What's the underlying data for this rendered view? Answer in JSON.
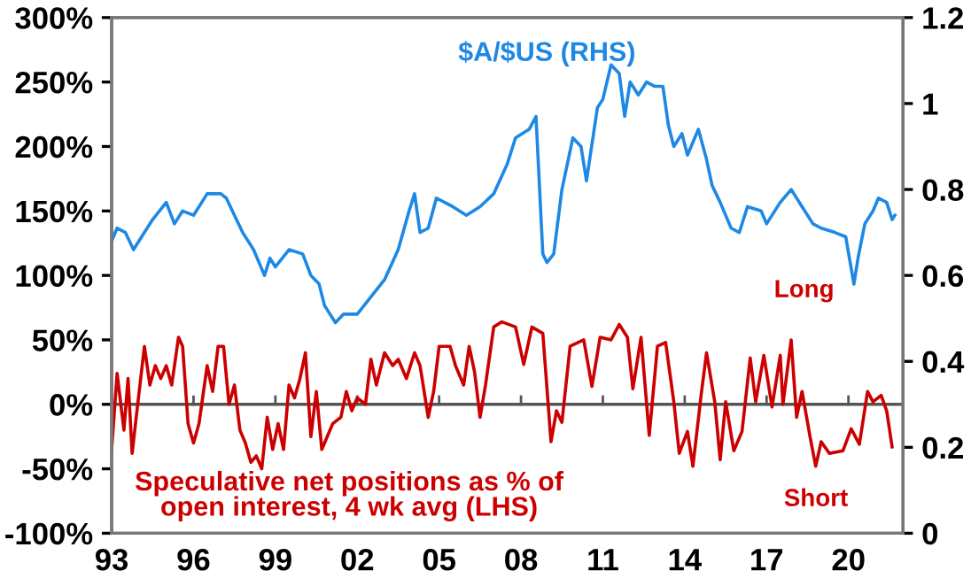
{
  "chart_data": {
    "type": "line",
    "annotations": [
      "Long",
      "Short"
    ],
    "series": [
      {
        "name": "$A/$US (RHS)",
        "color": "#1e88e5",
        "axis": "y2",
        "x": [
          1993.0,
          1993.2,
          1993.5,
          1993.8,
          1994.0,
          1994.5,
          1995.0,
          1995.3,
          1995.6,
          1996.0,
          1996.5,
          1997.0,
          1997.2,
          1997.5,
          1997.8,
          1998.2,
          1998.6,
          1998.8,
          1999.0,
          1999.5,
          2000.0,
          2000.3,
          2000.6,
          2000.8,
          2001.2,
          2001.5,
          2001.8,
          2002.0,
          2002.5,
          2003.0,
          2003.5,
          2003.9,
          2004.1,
          2004.3,
          2004.6,
          2004.9,
          2005.5,
          2006.0,
          2006.5,
          2007.0,
          2007.5,
          2007.8,
          2008.3,
          2008.55,
          2008.8,
          2008.95,
          2009.2,
          2009.5,
          2009.9,
          2010.2,
          2010.4,
          2010.8,
          2011.0,
          2011.3,
          2011.6,
          2011.8,
          2012.0,
          2012.3,
          2012.6,
          2012.9,
          2013.2,
          2013.4,
          2013.6,
          2013.9,
          2014.1,
          2014.5,
          2014.8,
          2015.0,
          2015.3,
          2015.7,
          2016.0,
          2016.3,
          2016.8,
          2017.0,
          2017.5,
          2017.9,
          2018.0,
          2018.3,
          2018.7,
          2019.0,
          2019.5,
          2019.9,
          2020.2,
          2020.35,
          2020.6,
          2020.9,
          2021.1,
          2021.4,
          2021.6,
          2021.7
        ],
        "values": [
          0.68,
          0.71,
          0.7,
          0.66,
          0.68,
          0.73,
          0.77,
          0.72,
          0.75,
          0.74,
          0.79,
          0.79,
          0.78,
          0.74,
          0.7,
          0.66,
          0.6,
          0.64,
          0.62,
          0.66,
          0.65,
          0.6,
          0.58,
          0.53,
          0.49,
          0.51,
          0.51,
          0.51,
          0.55,
          0.59,
          0.66,
          0.75,
          0.79,
          0.7,
          0.71,
          0.78,
          0.76,
          0.74,
          0.76,
          0.79,
          0.86,
          0.92,
          0.94,
          0.97,
          0.65,
          0.63,
          0.65,
          0.8,
          0.92,
          0.9,
          0.82,
          0.99,
          1.01,
          1.09,
          1.07,
          0.97,
          1.05,
          1.02,
          1.05,
          1.04,
          1.04,
          0.95,
          0.9,
          0.93,
          0.88,
          0.94,
          0.87,
          0.81,
          0.77,
          0.71,
          0.7,
          0.76,
          0.75,
          0.72,
          0.77,
          0.8,
          0.79,
          0.76,
          0.72,
          0.71,
          0.7,
          0.69,
          0.58,
          0.64,
          0.72,
          0.75,
          0.78,
          0.77,
          0.73,
          0.74
        ]
      },
      {
        "name": "Speculative net positions as % of\nopen interest, 4 wk avg (LHS)",
        "color": "#cc0000",
        "axis": "y",
        "x": [
          1993.0,
          1993.2,
          1993.45,
          1993.6,
          1993.75,
          1993.9,
          1994.2,
          1994.4,
          1994.6,
          1994.8,
          1995.0,
          1995.2,
          1995.45,
          1995.6,
          1995.8,
          1996.0,
          1996.2,
          1996.5,
          1996.7,
          1996.9,
          1997.1,
          1997.3,
          1997.5,
          1997.7,
          1997.9,
          1998.1,
          1998.3,
          1998.5,
          1998.7,
          1998.9,
          1999.1,
          1999.3,
          1999.5,
          1999.7,
          1999.9,
          2000.1,
          2000.3,
          2000.5,
          2000.7,
          2000.9,
          2001.1,
          2001.4,
          2001.6,
          2001.8,
          2002.0,
          2002.3,
          2002.5,
          2002.7,
          2003.0,
          2003.3,
          2003.5,
          2003.8,
          2004.1,
          2004.3,
          2004.6,
          2004.8,
          2005.0,
          2005.4,
          2005.6,
          2005.9,
          2006.1,
          2006.3,
          2006.5,
          2006.7,
          2007.0,
          2007.3,
          2007.8,
          2008.1,
          2008.4,
          2008.8,
          2009.1,
          2009.3,
          2009.5,
          2009.8,
          2010.3,
          2010.6,
          2010.9,
          2011.3,
          2011.6,
          2011.9,
          2012.1,
          2012.4,
          2012.7,
          2013.0,
          2013.3,
          2013.6,
          2013.8,
          2014.1,
          2014.3,
          2014.6,
          2014.8,
          2015.1,
          2015.3,
          2015.5,
          2015.8,
          2016.1,
          2016.4,
          2016.6,
          2016.9,
          2017.2,
          2017.5,
          2017.6,
          2017.9,
          2018.1,
          2018.3,
          2018.6,
          2018.8,
          2019.0,
          2019.3,
          2019.8,
          2020.1,
          2020.4,
          2020.7,
          2020.9,
          2021.2,
          2021.4,
          2021.6
        ],
        "values": [
          -35,
          24,
          -20,
          20,
          -38,
          -10,
          45,
          15,
          30,
          20,
          30,
          15,
          52,
          45,
          -15,
          -30,
          -15,
          30,
          10,
          45,
          45,
          0,
          15,
          -20,
          -30,
          -45,
          -40,
          -50,
          -10,
          -35,
          -15,
          -35,
          15,
          5,
          20,
          40,
          -25,
          10,
          -35,
          -25,
          -15,
          -10,
          10,
          -5,
          5,
          0,
          35,
          15,
          40,
          30,
          35,
          20,
          40,
          30,
          -10,
          10,
          45,
          45,
          30,
          15,
          45,
          25,
          -10,
          15,
          60,
          64,
          60,
          31,
          60,
          55,
          -29,
          -5,
          -14,
          45,
          50,
          14,
          52,
          50,
          62,
          52,
          12,
          52,
          -24,
          45,
          48,
          2,
          -38,
          -21,
          -48,
          7,
          40,
          2,
          -43,
          2,
          -36,
          -21,
          36,
          2,
          38,
          -2,
          38,
          0,
          50,
          -10,
          10,
          -26,
          -48,
          -29,
          -38,
          -36,
          -19,
          -31,
          10,
          2,
          7,
          -5,
          -33
        ]
      }
    ],
    "xlim": [
      1993,
      2022
    ],
    "xticks": [
      {
        "value": 1993,
        "label": "93"
      },
      {
        "value": 1996,
        "label": "96"
      },
      {
        "value": 1999,
        "label": "99"
      },
      {
        "value": 2002,
        "label": "02"
      },
      {
        "value": 2005,
        "label": "05"
      },
      {
        "value": 2008,
        "label": "08"
      },
      {
        "value": 2011,
        "label": "11"
      },
      {
        "value": 2014,
        "label": "14"
      },
      {
        "value": 2017,
        "label": "17"
      },
      {
        "value": 2020,
        "label": "20"
      }
    ],
    "ylim": [
      -100,
      300
    ],
    "yticks": [
      {
        "value": -100,
        "label": "-100%"
      },
      {
        "value": -50,
        "label": "-50%"
      },
      {
        "value": 0,
        "label": "0%"
      },
      {
        "value": 50,
        "label": "50%"
      },
      {
        "value": 100,
        "label": "100%"
      },
      {
        "value": 150,
        "label": "150%"
      },
      {
        "value": 200,
        "label": "200%"
      },
      {
        "value": 250,
        "label": "250%"
      },
      {
        "value": 300,
        "label": "300%"
      }
    ],
    "y2lim": [
      0,
      1.2
    ],
    "y2ticks": [
      0,
      0.2,
      0.4,
      0.6,
      0.8,
      1,
      1.2
    ],
    "ref_lines": [
      {
        "axis": "y",
        "value": 0,
        "color": "#555555"
      }
    ],
    "grid": false,
    "legend": false,
    "marker": "none",
    "line_style": "solid"
  }
}
